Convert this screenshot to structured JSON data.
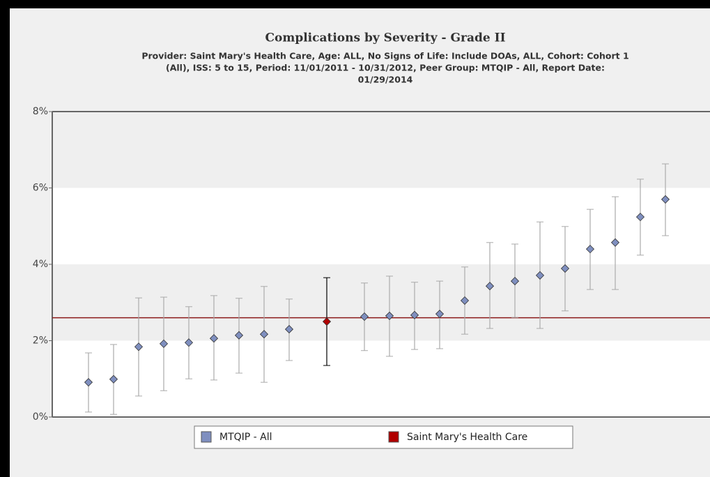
{
  "chart_data": {
    "type": "errorbar",
    "title": "Complications by Severity - Grade II",
    "subtitle": [
      "Provider: Saint Mary's Health Care, Age: ALL, No Signs of Life: Include DOAs, ALL, Cohort: Cohort 1",
      "(All), ISS: 5 to 15, Period: 11/01/2011 - 10/31/2012, Peer Group: MTQIP - All, Report Date:",
      "01/29/2014"
    ],
    "ylim": [
      0,
      8
    ],
    "yticks": [
      {
        "value": 0,
        "label": "0%"
      },
      {
        "value": 2,
        "label": "2%"
      },
      {
        "value": 4,
        "label": "4%"
      },
      {
        "value": 6,
        "label": "6%"
      },
      {
        "value": 8,
        "label": "8%"
      }
    ],
    "reference_line": 2.6,
    "reference_color": "#8b1a1a",
    "series": [
      {
        "name": "MTQIP - All",
        "color": "#7f8fbf",
        "error_color": "#aaaaaa",
        "x": [
          1,
          2,
          3,
          4,
          5,
          6,
          7,
          8,
          9,
          12,
          13,
          14,
          15,
          16,
          17,
          18,
          19,
          20,
          21,
          22,
          23,
          24
        ],
        "values": [
          0.91,
          0.99,
          1.84,
          1.92,
          1.95,
          2.06,
          2.14,
          2.17,
          2.3,
          2.63,
          2.65,
          2.67,
          2.7,
          3.05,
          3.43,
          3.56,
          3.71,
          3.89,
          4.4,
          4.57,
          5.24,
          5.7
        ],
        "low": [
          0.13,
          0.07,
          0.55,
          0.69,
          1.0,
          0.97,
          1.15,
          0.91,
          1.48,
          1.74,
          1.59,
          1.77,
          1.79,
          2.17,
          2.32,
          2.61,
          2.32,
          2.78,
          3.34,
          3.34,
          4.24,
          4.75
        ],
        "high": [
          1.68,
          1.9,
          3.12,
          3.14,
          2.89,
          3.18,
          3.11,
          3.42,
          3.09,
          3.51,
          3.69,
          3.53,
          3.56,
          3.93,
          4.57,
          4.53,
          5.11,
          4.99,
          5.44,
          5.77,
          6.23,
          6.63
        ]
      },
      {
        "name": "Saint Mary's Health Care",
        "color": "#b00000",
        "error_color": "#000000",
        "x": [
          10.5
        ],
        "values": [
          2.5
        ],
        "low": [
          1.35
        ],
        "high": [
          3.65
        ]
      }
    ]
  }
}
